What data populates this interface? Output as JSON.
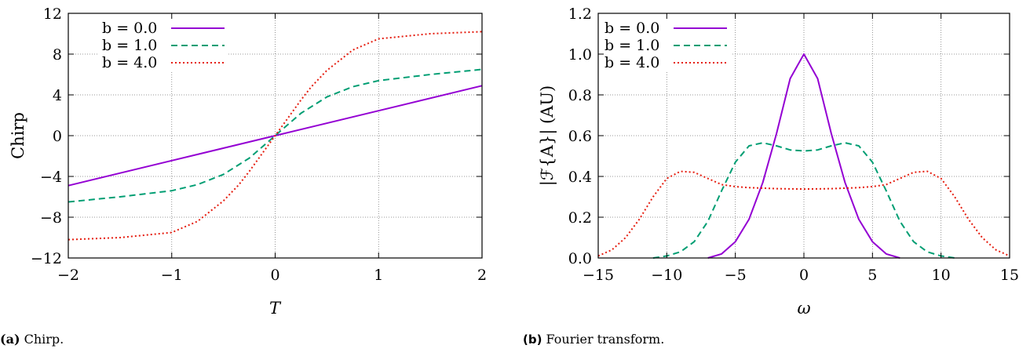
{
  "chart_data": [
    {
      "type": "line",
      "panel": "(a)",
      "caption": "Chirp.",
      "xlabel": "T",
      "ylabel": "Chirp",
      "xlim": [
        -2,
        2
      ],
      "ylim": [
        -12,
        12
      ],
      "xticks": [
        -2,
        -1,
        0,
        1,
        2
      ],
      "yticks": [
        -12,
        -8,
        -4,
        0,
        4,
        8,
        12
      ],
      "xtick_labels": [
        "−2",
        "−1",
        "0",
        "1",
        "2"
      ],
      "ytick_labels": [
        "−12",
        "−8",
        "−4",
        "0",
        "4",
        "8",
        "12"
      ],
      "grid": true,
      "legend": "top-left",
      "series": [
        {
          "name": "b = 0.0",
          "color": "#9400d3",
          "dash": "solid",
          "x": [
            -2,
            -1,
            0,
            1,
            2
          ],
          "y": [
            -4.9,
            -2.45,
            0,
            2.45,
            4.9
          ]
        },
        {
          "name": "b = 1.0",
          "color": "#009e73",
          "dash": "dashed",
          "x": [
            -2,
            -1.5,
            -1,
            -0.75,
            -0.5,
            -0.25,
            0,
            0.25,
            0.5,
            0.75,
            1,
            1.5,
            2
          ],
          "y": [
            -6.5,
            -6.0,
            -5.4,
            -4.8,
            -3.8,
            -2.2,
            0,
            2.2,
            3.8,
            4.8,
            5.4,
            6.0,
            6.5
          ]
        },
        {
          "name": "b = 4.0",
          "color": "#e51e10",
          "dash": "dotted",
          "x": [
            -2,
            -1.5,
            -1,
            -0.75,
            -0.5,
            -0.35,
            -0.25,
            -0.1,
            0,
            0.1,
            0.25,
            0.35,
            0.5,
            0.75,
            1,
            1.5,
            2
          ],
          "y": [
            -10.2,
            -10.0,
            -9.5,
            -8.4,
            -6.4,
            -4.8,
            -3.5,
            -1.4,
            0,
            1.4,
            3.5,
            4.8,
            6.4,
            8.4,
            9.5,
            10.0,
            10.2
          ]
        }
      ]
    },
    {
      "type": "line",
      "panel": "(b)",
      "caption": "Fourier transform.",
      "xlabel": "ω",
      "ylabel": "|ℱ{A}| (AU)",
      "xlim": [
        -15,
        15
      ],
      "ylim": [
        0,
        1.2
      ],
      "xticks": [
        -15,
        -10,
        -5,
        0,
        5,
        10,
        15
      ],
      "yticks": [
        0,
        0.2,
        0.4,
        0.6,
        0.8,
        1.0,
        1.2
      ],
      "xtick_labels": [
        "−15",
        "−10",
        "−5",
        "0",
        "5",
        "10",
        "15"
      ],
      "ytick_labels": [
        "0.0",
        "0.2",
        "0.4",
        "0.6",
        "0.8",
        "1.0",
        "1.2"
      ],
      "grid": true,
      "legend": "top-left",
      "series": [
        {
          "name": "b = 0.0",
          "color": "#9400d3",
          "dash": "solid",
          "x": [
            -7,
            -6,
            -5,
            -4,
            -3,
            -2,
            -1,
            0,
            1,
            2,
            3,
            4,
            5,
            6,
            7
          ],
          "y": [
            0.0,
            0.02,
            0.08,
            0.19,
            0.37,
            0.61,
            0.88,
            1.0,
            0.88,
            0.61,
            0.37,
            0.19,
            0.08,
            0.02,
            0.0
          ]
        },
        {
          "name": "b = 1.0",
          "color": "#009e73",
          "dash": "dashed",
          "x": [
            -11,
            -10,
            -9,
            -8,
            -7,
            -6,
            -5,
            -4,
            -3,
            -2,
            -1,
            0,
            1,
            2,
            3,
            4,
            5,
            6,
            7,
            8,
            9,
            10,
            11
          ],
          "y": [
            0.0,
            0.01,
            0.03,
            0.08,
            0.18,
            0.33,
            0.47,
            0.55,
            0.565,
            0.55,
            0.53,
            0.525,
            0.53,
            0.55,
            0.565,
            0.55,
            0.47,
            0.33,
            0.18,
            0.08,
            0.03,
            0.01,
            0.0
          ]
        },
        {
          "name": "b = 4.0",
          "color": "#e51e10",
          "dash": "dotted",
          "x": [
            -15,
            -14,
            -13,
            -12,
            -11,
            -10,
            -9,
            -8,
            -7,
            -6,
            -5,
            -4,
            -2,
            0,
            2,
            4,
            5,
            6,
            7,
            8,
            9,
            10,
            11,
            12,
            13,
            14,
            15
          ],
          "y": [
            0.01,
            0.04,
            0.1,
            0.19,
            0.3,
            0.39,
            0.425,
            0.42,
            0.39,
            0.36,
            0.35,
            0.345,
            0.34,
            0.338,
            0.34,
            0.345,
            0.35,
            0.36,
            0.39,
            0.42,
            0.425,
            0.39,
            0.3,
            0.19,
            0.1,
            0.04,
            0.01
          ]
        }
      ]
    }
  ]
}
